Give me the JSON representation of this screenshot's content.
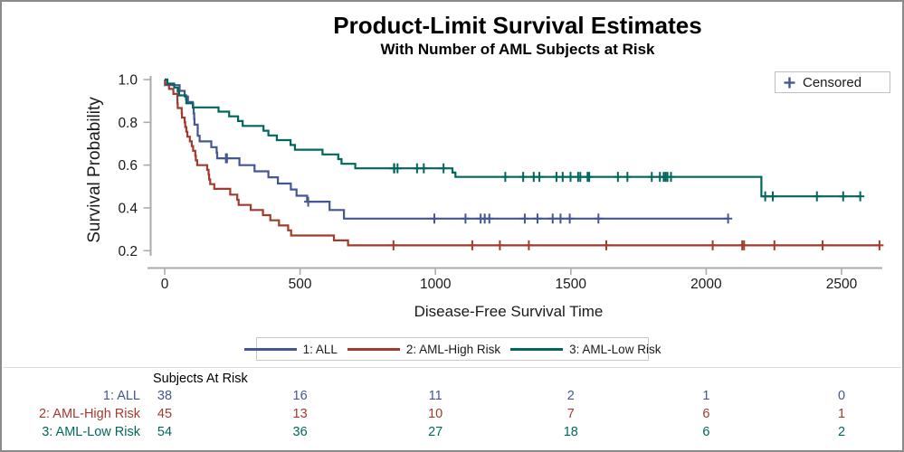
{
  "figure": {
    "border_color": "#8A8A8A",
    "background": "#FFFFFF"
  },
  "chart_data": {
    "type": "line",
    "subtype": "kaplan-meier-step",
    "title": "Product-Limit Survival Estimates",
    "subtitle": "With Number of AML Subjects at Risk",
    "xlabel": "Disease-Free Survival Time",
    "ylabel": "Survival Probability",
    "xticks": [
      0,
      500,
      1000,
      1500,
      2000,
      2500
    ],
    "yticks": [
      1.0,
      0.8,
      0.6,
      0.4,
      0.2
    ],
    "xlim": [
      0,
      2700
    ],
    "ylim": [
      0.12,
      1.0
    ],
    "grid": false,
    "legend_position": "bottom-center",
    "censored_legend_label": "Censored",
    "axis_color": "#ABABAB",
    "text_color": "#1A1A1A",
    "series": [
      {
        "name": "1: ALL",
        "color": "#445694",
        "start": [
          0,
          1.0
        ],
        "steps": [
          [
            1,
            0.974
          ],
          [
            55,
            0.947
          ],
          [
            74,
            0.921
          ],
          [
            86,
            0.895
          ],
          [
            104,
            0.868
          ],
          [
            107,
            0.842
          ],
          [
            109,
            0.816
          ],
          [
            110,
            0.789
          ],
          [
            122,
            0.737
          ],
          [
            129,
            0.711
          ],
          [
            172,
            0.684
          ],
          [
            192,
            0.658
          ],
          [
            194,
            0.632
          ],
          [
            276,
            0.6
          ],
          [
            332,
            0.571
          ],
          [
            383,
            0.543
          ],
          [
            418,
            0.514
          ],
          [
            466,
            0.486
          ],
          [
            487,
            0.457
          ],
          [
            526,
            0.429
          ],
          [
            609,
            0.39
          ],
          [
            662,
            0.35
          ]
        ],
        "end": 2081,
        "censor_times": [
          226,
          230,
          530,
          996,
          1111,
          1167,
          1182,
          1199,
          1330,
          1377,
          1433,
          1462,
          1496,
          1602,
          2081
        ]
      },
      {
        "name": "2: AML-High Risk",
        "color": "#A23A2E",
        "start": [
          0,
          1.0
        ],
        "steps": [
          [
            2,
            0.978
          ],
          [
            16,
            0.956
          ],
          [
            32,
            0.933
          ],
          [
            47,
            0.889
          ],
          [
            48,
            0.867
          ],
          [
            63,
            0.844
          ],
          [
            64,
            0.822
          ],
          [
            74,
            0.8
          ],
          [
            76,
            0.778
          ],
          [
            80,
            0.756
          ],
          [
            84,
            0.733
          ],
          [
            93,
            0.711
          ],
          [
            100,
            0.689
          ],
          [
            105,
            0.667
          ],
          [
            113,
            0.644
          ],
          [
            115,
            0.622
          ],
          [
            120,
            0.6
          ],
          [
            157,
            0.578
          ],
          [
            162,
            0.556
          ],
          [
            164,
            0.533
          ],
          [
            168,
            0.511
          ],
          [
            183,
            0.489
          ],
          [
            242,
            0.462
          ],
          [
            268,
            0.438
          ],
          [
            273,
            0.414
          ],
          [
            318,
            0.39
          ],
          [
            363,
            0.366
          ],
          [
            390,
            0.342
          ],
          [
            422,
            0.318
          ],
          [
            456,
            0.295
          ],
          [
            467,
            0.271
          ],
          [
            625,
            0.248
          ],
          [
            677,
            0.225
          ]
        ],
        "end": 2640,
        "censor_times": [
          845,
          1136,
          1238,
          1345,
          1631,
          2024,
          2133,
          2140,
          2252,
          2430,
          2640
        ]
      },
      {
        "name": "3: AML-Low Risk",
        "color": "#01665E",
        "start": [
          0,
          1.0
        ],
        "steps": [
          [
            10,
            0.981
          ],
          [
            35,
            0.963
          ],
          [
            48,
            0.944
          ],
          [
            53,
            0.926
          ],
          [
            79,
            0.907
          ],
          [
            80,
            0.889
          ],
          [
            105,
            0.87
          ],
          [
            199,
            0.85
          ],
          [
            238,
            0.828
          ],
          [
            271,
            0.806
          ],
          [
            288,
            0.783
          ],
          [
            365,
            0.761
          ],
          [
            383,
            0.739
          ],
          [
            414,
            0.717
          ],
          [
            465,
            0.694
          ],
          [
            481,
            0.672
          ],
          [
            583,
            0.65
          ],
          [
            641,
            0.628
          ],
          [
            653,
            0.606
          ],
          [
            704,
            0.585
          ],
          [
            1063,
            0.565
          ],
          [
            1074,
            0.545
          ],
          [
            2204,
            0.454
          ]
        ],
        "end": 2569,
        "censor_times": [
          847,
          848,
          860,
          932,
          957,
          1030,
          1258,
          1324,
          1363,
          1384,
          1447,
          1470,
          1499,
          1527,
          1535,
          1562,
          1568,
          1674,
          1709,
          1799,
          1829,
          1843,
          1850,
          1857,
          1870,
          2218,
          2246,
          2409,
          2506,
          2569
        ]
      }
    ],
    "at_risk_table": {
      "header": "Subjects At Risk",
      "times": [
        0,
        500,
        1000,
        1500,
        2000,
        2500
      ],
      "rows": [
        {
          "label": "1: ALL",
          "color": "#445694",
          "counts": [
            38,
            16,
            11,
            2,
            1,
            0
          ]
        },
        {
          "label": "2: AML-High Risk",
          "color": "#A23A2E",
          "counts": [
            45,
            13,
            10,
            7,
            6,
            1
          ]
        },
        {
          "label": "3: AML-Low Risk",
          "color": "#01665E",
          "counts": [
            54,
            36,
            27,
            18,
            6,
            2
          ]
        }
      ]
    }
  }
}
